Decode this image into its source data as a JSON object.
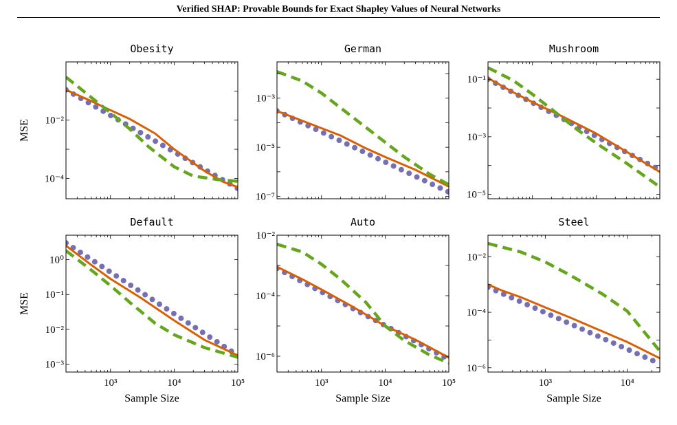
{
  "header": {
    "title": "Verified SHAP: Provable Bounds for Exact Shapley Values of Neural Networks"
  },
  "chart_data": [
    {
      "type": "line",
      "title": "Obesity",
      "xlabel": "",
      "ylabel": "MSE",
      "xscale": "log",
      "yscale": "log",
      "xlim": [
        200,
        100000
      ],
      "ylim": [
        2e-05,
        1
      ],
      "xticks": [],
      "yticks": [
        {
          "value": 0.01,
          "label": "10^-2"
        },
        {
          "value": 0.0001,
          "label": "10^-4"
        }
      ],
      "series": [
        {
          "style": "purple-dotted",
          "color": "#7570b3",
          "x": [
            200,
            100000
          ],
          "y": [
            0.11,
            4.5e-05
          ]
        },
        {
          "style": "orange-solid",
          "color": "#d95f02",
          "x": [
            200,
            500,
            1000,
            2000,
            5000,
            10000,
            30000,
            60000,
            100000
          ],
          "y": [
            0.11,
            0.045,
            0.022,
            0.011,
            0.0035,
            0.001,
            0.00018,
            7.5e-05,
            5e-05
          ]
        },
        {
          "style": "green-dashed",
          "color": "#66a61e",
          "x": [
            200,
            500,
            1000,
            2000,
            4000,
            10000,
            20000,
            50000,
            100000
          ],
          "y": [
            0.3,
            0.06,
            0.018,
            0.005,
            0.0012,
            0.00025,
            0.00012,
            9e-05,
            8e-05
          ]
        }
      ]
    },
    {
      "type": "line",
      "title": "German",
      "xlabel": "",
      "ylabel": "",
      "xscale": "log",
      "yscale": "log",
      "xlim": [
        200,
        100000
      ],
      "ylim": [
        8e-08,
        0.03
      ],
      "xticks": [],
      "yticks": [
        {
          "value": 0.001,
          "label": "10^-3"
        },
        {
          "value": 1e-05,
          "label": "10^-5"
        },
        {
          "value": 1e-07,
          "label": "10^-7"
        }
      ],
      "series": [
        {
          "style": "purple-dotted",
          "color": "#7570b3",
          "x": [
            200,
            100000
          ],
          "y": [
            0.0003,
            1.5e-07
          ]
        },
        {
          "style": "orange-solid",
          "color": "#d95f02",
          "x": [
            200,
            500,
            1000,
            2000,
            5000,
            10000,
            30000,
            100000
          ],
          "y": [
            0.0003,
            0.00012,
            6e-05,
            3e-05,
            9e-06,
            4e-06,
            1.2e-06,
            2.5e-07
          ]
        },
        {
          "style": "green-dashed",
          "color": "#66a61e",
          "x": [
            200,
            500,
            1000,
            2000,
            4000,
            10000,
            20000,
            50000,
            100000
          ],
          "y": [
            0.012,
            0.005,
            0.0016,
            0.0004,
            0.0001,
            1.6e-05,
            4e-06,
            8e-07,
            3e-07
          ]
        }
      ]
    },
    {
      "type": "line",
      "title": "Mushroom",
      "xlabel": "",
      "ylabel": "",
      "xscale": "log",
      "yscale": "log",
      "xlim": [
        200,
        100000
      ],
      "ylim": [
        7e-06,
        0.4
      ],
      "xticks": [],
      "yticks": [
        {
          "value": 0.1,
          "label": "10^-1"
        },
        {
          "value": 0.001,
          "label": "10^-3"
        },
        {
          "value": 1e-05,
          "label": "10^-5"
        }
      ],
      "series": [
        {
          "style": "purple-dotted",
          "color": "#7570b3",
          "x": [
            200,
            100000
          ],
          "y": [
            0.1,
            7e-05
          ]
        },
        {
          "style": "orange-solid",
          "color": "#d95f02",
          "x": [
            200,
            500,
            1000,
            3000,
            10000,
            30000,
            100000
          ],
          "y": [
            0.11,
            0.035,
            0.016,
            0.005,
            0.0013,
            0.0003,
            6e-05
          ]
        },
        {
          "style": "green-dashed",
          "color": "#66a61e",
          "x": [
            200,
            500,
            1000,
            2000,
            5000,
            10000,
            30000,
            100000
          ],
          "y": [
            0.25,
            0.09,
            0.03,
            0.009,
            0.0018,
            0.0006,
            0.00012,
            1.8e-05
          ]
        }
      ]
    },
    {
      "type": "line",
      "title": "Default",
      "xlabel": "Sample Size",
      "ylabel": "MSE",
      "xscale": "log",
      "yscale": "log",
      "xlim": [
        200,
        100000
      ],
      "ylim": [
        0.0006,
        5
      ],
      "xticks": [
        {
          "value": 1000,
          "label": "10^3"
        },
        {
          "value": 10000,
          "label": "10^4"
        },
        {
          "value": 100000,
          "label": "10^5"
        }
      ],
      "yticks": [
        {
          "value": 1,
          "label": "10^0"
        },
        {
          "value": 0.1,
          "label": "10^-1"
        },
        {
          "value": 0.01,
          "label": "10^-2"
        },
        {
          "value": 0.001,
          "label": "10^-3"
        }
      ],
      "series": [
        {
          "style": "purple-dotted",
          "color": "#7570b3",
          "x": [
            200,
            100000
          ],
          "y": [
            3,
            0.0018
          ]
        },
        {
          "style": "orange-solid",
          "color": "#d95f02",
          "x": [
            200,
            500,
            1000,
            3000,
            10000,
            30000,
            100000
          ],
          "y": [
            2.5,
            0.7,
            0.28,
            0.08,
            0.018,
            0.005,
            0.0018
          ]
        },
        {
          "style": "green-dashed",
          "color": "#66a61e",
          "x": [
            200,
            500,
            1000,
            2000,
            5000,
            10000,
            30000,
            100000
          ],
          "y": [
            1.8,
            0.5,
            0.18,
            0.06,
            0.015,
            0.007,
            0.003,
            0.0016
          ]
        }
      ]
    },
    {
      "type": "line",
      "title": "Auto",
      "xlabel": "Sample Size",
      "ylabel": "",
      "xscale": "log",
      "yscale": "log",
      "xlim": [
        200,
        100000
      ],
      "ylim": [
        3e-07,
        0.01
      ],
      "xticks": [
        {
          "value": 1000,
          "label": "10^3"
        },
        {
          "value": 10000,
          "label": "10^4"
        },
        {
          "value": 100000,
          "label": "10^5"
        }
      ],
      "yticks": [
        {
          "value": 0.01,
          "label": "10^-2"
        },
        {
          "value": 0.0001,
          "label": "10^-4"
        },
        {
          "value": 1e-06,
          "label": "10^-6"
        }
      ],
      "series": [
        {
          "style": "purple-dotted",
          "color": "#7570b3",
          "x": [
            200,
            100000
          ],
          "y": [
            0.0008,
            8e-07
          ]
        },
        {
          "style": "orange-solid",
          "color": "#d95f02",
          "x": [
            200,
            500,
            1000,
            3000,
            10000,
            30000,
            100000
          ],
          "y": [
            0.0009,
            0.00035,
            0.00016,
            4.5e-05,
            1e-05,
            3.5e-06,
            9e-07
          ]
        },
        {
          "style": "green-dashed",
          "color": "#66a61e",
          "x": [
            200,
            500,
            1000,
            2000,
            5000,
            10000,
            20000,
            50000,
            100000
          ],
          "y": [
            0.005,
            0.0028,
            0.0011,
            0.00035,
            6e-05,
            1e-05,
            3.3e-06,
            1.1e-06,
            6e-07
          ]
        }
      ]
    },
    {
      "type": "line",
      "title": "Steel",
      "xlabel": "Sample Size",
      "ylabel": "",
      "xscale": "log",
      "yscale": "log",
      "xlim": [
        200,
        25000
      ],
      "ylim": [
        7e-07,
        0.06
      ],
      "xticks": [
        {
          "value": 1000,
          "label": "10^3"
        },
        {
          "value": 10000,
          "label": "10^4"
        }
      ],
      "yticks": [
        {
          "value": 0.01,
          "label": "10^-2"
        },
        {
          "value": 0.0001,
          "label": "10^-4"
        },
        {
          "value": 1e-06,
          "label": "10^-6"
        }
      ],
      "series": [
        {
          "style": "purple-dotted",
          "color": "#7570b3",
          "x": [
            200,
            25000
          ],
          "y": [
            0.0008,
            1.4e-06
          ]
        },
        {
          "style": "orange-solid",
          "color": "#d95f02",
          "x": [
            200,
            300,
            500,
            1000,
            2000,
            4000,
            10000,
            25000
          ],
          "y": [
            0.001,
            0.0006,
            0.00035,
            0.00015,
            6.5e-05,
            2.7e-05,
            8.5e-06,
            2.2e-06
          ]
        },
        {
          "style": "green-dashed",
          "color": "#66a61e",
          "x": [
            200,
            500,
            1000,
            2000,
            5000,
            10000,
            25000
          ],
          "y": [
            0.03,
            0.015,
            0.0065,
            0.0022,
            0.00045,
            0.00011,
            4e-06
          ]
        }
      ]
    }
  ]
}
